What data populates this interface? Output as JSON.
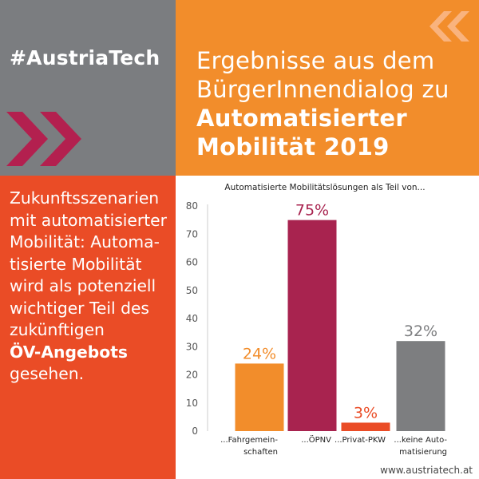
{
  "brand": {
    "hashtag": "#AustriaTech",
    "website": "www.austriatech.at"
  },
  "headline": {
    "line1": "Ergebnisse aus dem",
    "line2": "BürgerInnendialog zu",
    "line3": "Automatisierter",
    "line4": "Mobilität 2019"
  },
  "body": {
    "lines": [
      "Zukunftsszenarien",
      "mit automatisierter",
      "Mobilität: Automa-",
      "tisierte Mobilität",
      "wird als potenziell",
      "wichtiger Teil des",
      "zukünftigen"
    ],
    "emphasis": "ÖV-Angebots",
    "last": "gesehen."
  },
  "icons": {
    "left_chevrons": "double-chevron-right-icon",
    "right_chevrons": "double-chevron-left-icon"
  },
  "colors": {
    "grey_panel": "#7b7d80",
    "orange_panel": "#f28d2b",
    "red_panel": "#ea4c26",
    "chevron_left": "#b3204f",
    "chevron_right": "#f9b37e"
  },
  "chart_data": {
    "type": "bar",
    "title": "Automatisierte Mobilitätslösungen als Teil von...",
    "categories": [
      [
        "...Fahrgemein-",
        "schaften"
      ],
      [
        "...ÖPNV"
      ],
      [
        "...Privat-PKW"
      ],
      [
        "...keine Auto-",
        "matisierung"
      ]
    ],
    "values": [
      24,
      75,
      3,
      32
    ],
    "value_labels": [
      "24%",
      "75%",
      "3%",
      "32%"
    ],
    "colors": [
      "#f28d2b",
      "#a8234f",
      "#ea4c26",
      "#7d7e80"
    ],
    "yticks": [
      0,
      10,
      20,
      30,
      40,
      50,
      60,
      70,
      80
    ],
    "ylim": [
      0,
      80
    ],
    "grid": false
  }
}
